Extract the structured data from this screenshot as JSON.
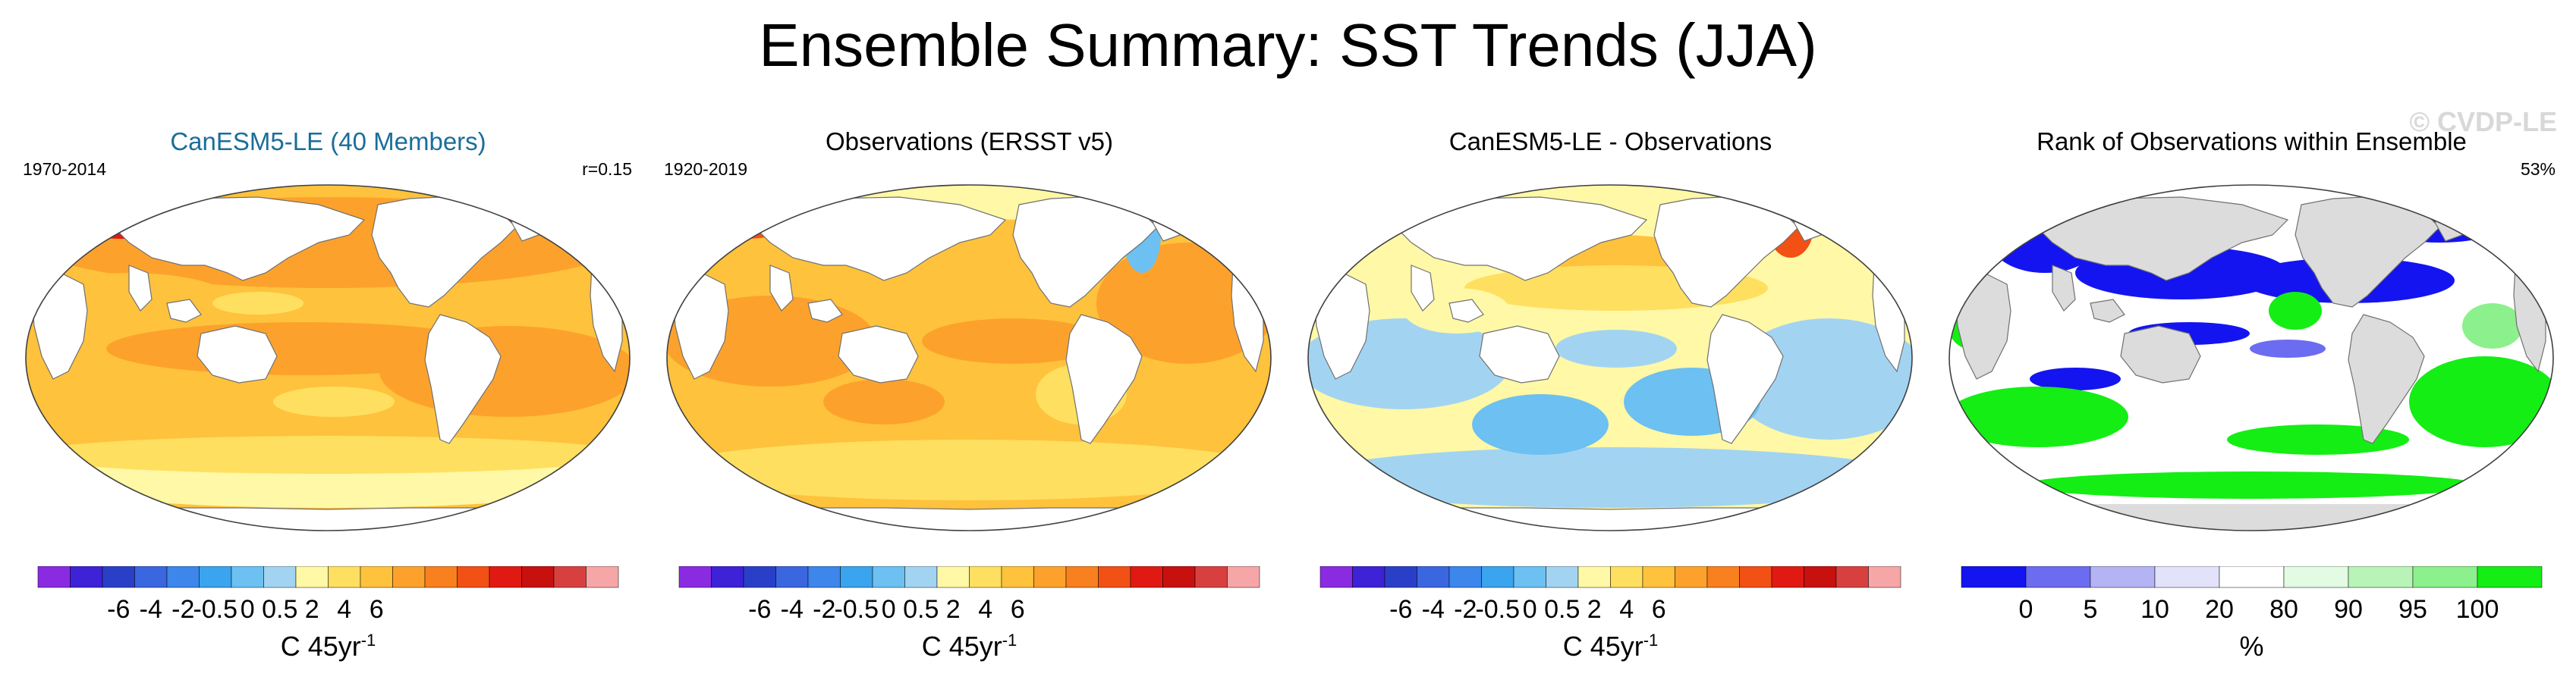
{
  "title": "Ensemble Summary: SST Trends (JJA)",
  "colors": {
    "trend_scale": [
      "#8a2be2",
      "#3d22d8",
      "#2a3fc8",
      "#3a66e0",
      "#3c86ec",
      "#3aa4ee",
      "#6cc0f2",
      "#a2d4f2",
      "#fff8a6",
      "#ffdf60",
      "#ffc23c",
      "#fca22c",
      "#f8801e",
      "#f25014",
      "#e01a12",
      "#c8100e",
      "#d84040",
      "#f6a6a6"
    ],
    "rank_scale": [
      "#1414f0",
      "#6c6cf0",
      "#b4b4f4",
      "#e2e2fb",
      "#ffffff",
      "#e2fbe2",
      "#b8f4b8",
      "#8cf08c",
      "#14ee14"
    ],
    "land": "#ffffff",
    "land_rank": "#dcdcdc",
    "coast": "#707070"
  },
  "chart_data": [
    {
      "type": "heatmap",
      "title": "CanESM5-LE (40 Members)",
      "period": "1970-2014",
      "stat": "r=0.15",
      "colorbar": {
        "tick_labels": [
          "-6",
          "-4",
          "-2",
          "-0.5",
          "0",
          "0.5",
          "2",
          "4",
          "6"
        ],
        "units": "C 45yr",
        "units_sup": "-1"
      },
      "description_values": {
        "dominant_trend": 0.5,
        "arctic_trend": 4
      }
    },
    {
      "type": "heatmap",
      "title": "Observations (ERSST v5)",
      "period": "1920-2019",
      "stat": "",
      "colorbar": {
        "tick_labels": [
          "-6",
          "-4",
          "-2",
          "-0.5",
          "0",
          "0.5",
          "2",
          "4",
          "6"
        ],
        "units": "C 45yr",
        "units_sup": "-1"
      },
      "description_values": {
        "dominant_trend": 0.5,
        "arctic_trend": 2
      }
    },
    {
      "type": "heatmap",
      "title": "CanESM5-LE - Observations",
      "period": "",
      "stat": "",
      "colorbar": {
        "tick_labels": [
          "-6",
          "-4",
          "-2",
          "-0.5",
          "0",
          "0.5",
          "2",
          "4",
          "6"
        ],
        "units": "C 45yr",
        "units_sup": "-1"
      },
      "description_values": {
        "dominant_trend": 0,
        "arctic_trend": 2
      }
    },
    {
      "type": "heatmap",
      "title": "Rank of Observations within Ensemble",
      "period": "",
      "stat": "53%",
      "watermark": "© CVDP-LE",
      "colorbar": {
        "tick_labels": [
          "0",
          "5",
          "10",
          "20",
          "80",
          "90",
          "95",
          "100"
        ],
        "units": "%",
        "units_sup": ""
      }
    }
  ]
}
